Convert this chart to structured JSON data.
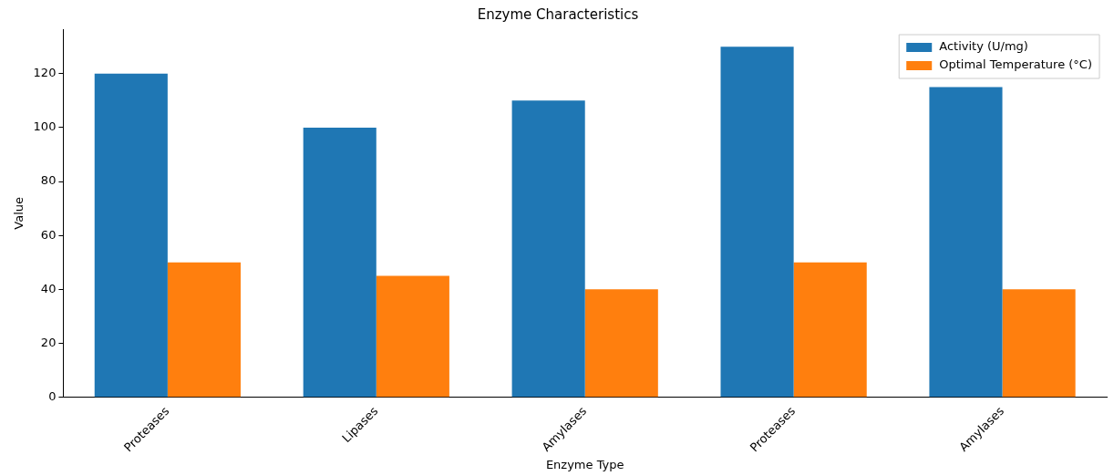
{
  "chart_data": {
    "type": "bar",
    "title": "Enzyme Characteristics",
    "xlabel": "Enzyme Type",
    "ylabel": "Value",
    "categories": [
      "Proteases",
      "Lipases",
      "Amylases",
      "Proteases",
      "Amylases"
    ],
    "series": [
      {
        "name": "Activity (U/mg)",
        "color": "#1f77b4",
        "values": [
          120,
          100,
          110,
          130,
          115
        ]
      },
      {
        "name": "Optimal Temperature (°C)",
        "color": "#ff7f0e",
        "values": [
          50,
          45,
          40,
          50,
          40
        ]
      }
    ],
    "ylim": [
      0,
      136.5
    ],
    "yticks": [
      0,
      20,
      40,
      60,
      80,
      100,
      120
    ],
    "grid": false,
    "legend": "top right"
  }
}
